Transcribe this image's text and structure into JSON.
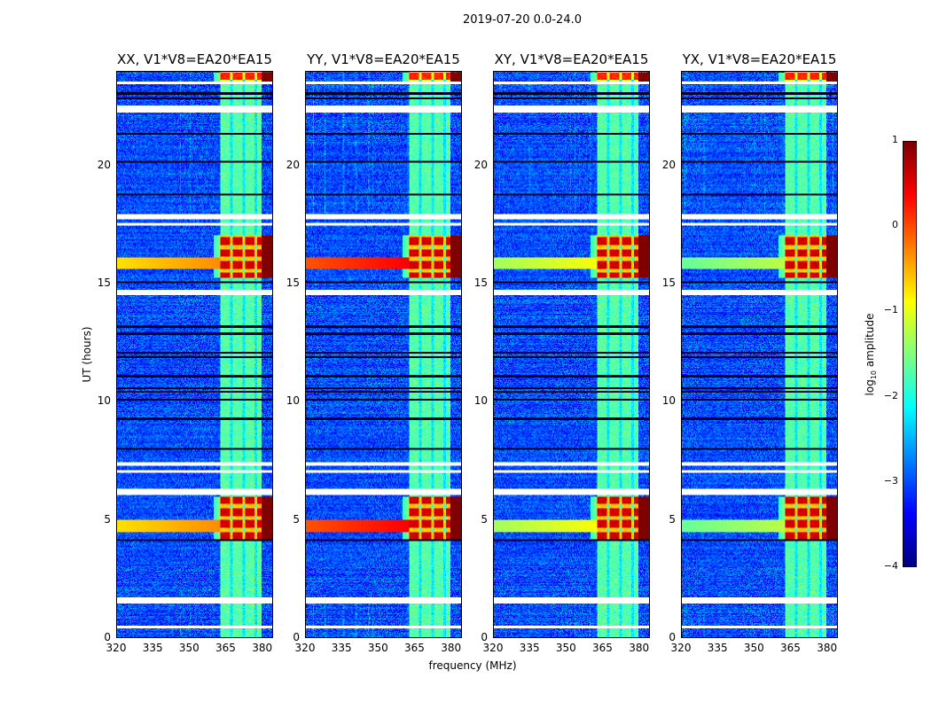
{
  "chart_data": {
    "type": "heatmap",
    "title": "2019-07-20 0.0-24.0",
    "xlabel": "frequency (MHz)",
    "ylabel": "UT (hours)",
    "xlim": [
      320,
      384.5
    ],
    "ylim": [
      0,
      24
    ],
    "xticks": [
      "320",
      "335",
      "350",
      "365",
      "380"
    ],
    "xtick_values": [
      320,
      335,
      350,
      365,
      380
    ],
    "yticks": [
      "0",
      "5",
      "10",
      "15",
      "20"
    ],
    "ytick_values": [
      0,
      5,
      10,
      15,
      20
    ],
    "panels": [
      {
        "title": "XX, V1*V8=EA20*EA15",
        "horizontal_rfi_level": -0.3
      },
      {
        "title": "YY, V1*V8=EA20*EA15",
        "horizontal_rfi_level": 0.4
      },
      {
        "title": "XY, V1*V8=EA20*EA15",
        "horizontal_rfi_level": -0.9
      },
      {
        "title": "YX, V1*V8=EA20*EA15",
        "horizontal_rfi_level": -1.2
      }
    ],
    "colorbar": {
      "label_base": "log",
      "label_sub": "10",
      "label_rest": " amplitude",
      "range": [
        -4,
        1
      ],
      "ticks": [
        "1",
        "0",
        "−1",
        "−2",
        "−3",
        "−4"
      ],
      "tick_values": [
        1,
        0,
        -1,
        -2,
        -3,
        -4
      ],
      "colormap": "jet"
    },
    "background_log_amp": -3.0,
    "band": {
      "freq": [
        363,
        380
      ],
      "level": -1.7
    },
    "rfi_windows": [
      {
        "ut": [
          4.1,
          6.0
        ],
        "level": 0.6
      },
      {
        "ut": [
          15.3,
          17.1
        ],
        "level": 0.6
      },
      {
        "ut": [
          23.6,
          24.0
        ],
        "level": 0.2
      }
    ],
    "flagged_ut": [
      [
        1.45,
        1.7
      ],
      [
        6.05,
        6.3
      ],
      [
        7.0,
        7.1
      ],
      [
        7.3,
        7.45
      ],
      [
        14.55,
        14.75
      ],
      [
        17.5,
        17.6
      ],
      [
        17.75,
        18.0
      ],
      [
        22.3,
        22.6
      ],
      [
        0.4,
        0.5
      ],
      [
        23.5,
        23.6
      ]
    ],
    "dropout_ut": [
      0.45,
      4.15,
      8.0,
      9.3,
      10.1,
      10.45,
      10.6,
      11.1,
      11.9,
      12.1,
      12.9,
      13.2,
      15.1,
      18.8,
      20.2,
      21.4,
      22.9,
      23.1
    ]
  }
}
